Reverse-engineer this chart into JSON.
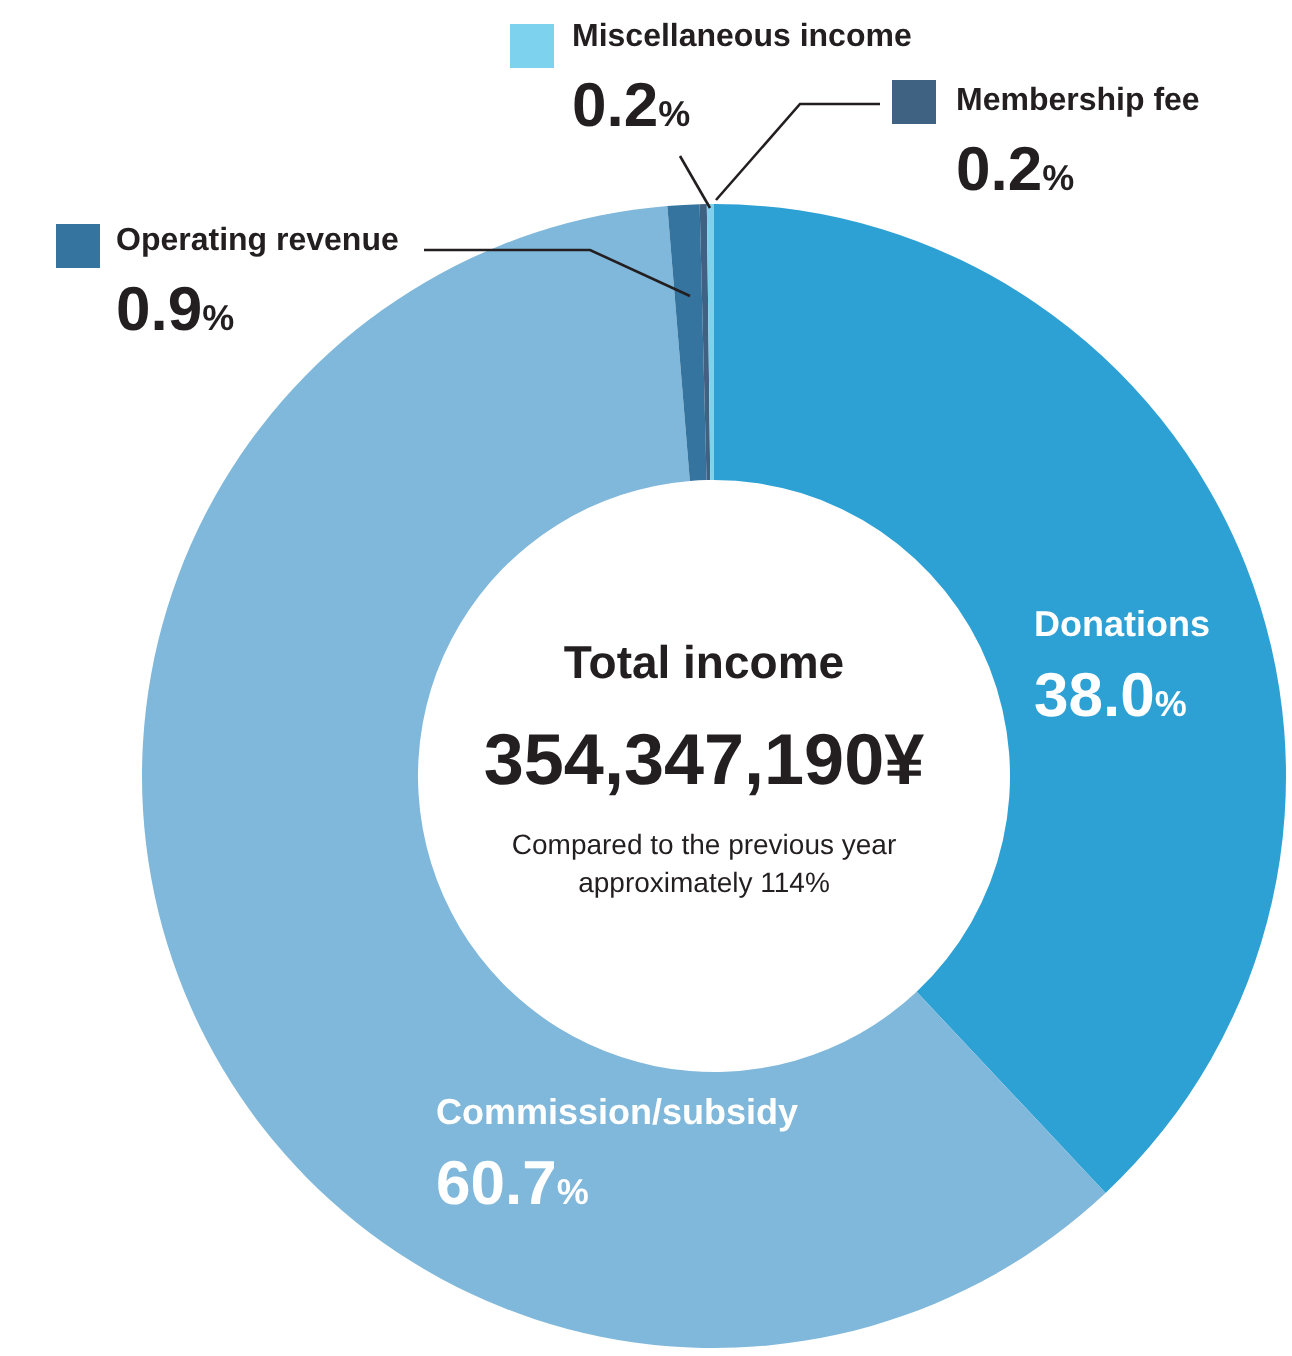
{
  "chart_data": {
    "type": "donut",
    "title": "Total income",
    "subtitle": "354,347,190¥",
    "annotations": [
      "Compared to the previous year approximately 114%"
    ],
    "categories": [
      "Donations",
      "Commission/subsidy",
      "Operating revenue",
      "Membership fee",
      "Miscellaneous income"
    ],
    "values": [
      38.0,
      60.7,
      0.9,
      0.2,
      0.2
    ],
    "colors": [
      "#2ea1d4",
      "#80b8db",
      "#35749e",
      "#3f6283",
      "#7dd3ee"
    ],
    "value_labels": [
      "38.0%",
      "60.7%",
      "0.9%",
      "0.2%",
      "0.2%"
    ],
    "legend": "top"
  }
}
